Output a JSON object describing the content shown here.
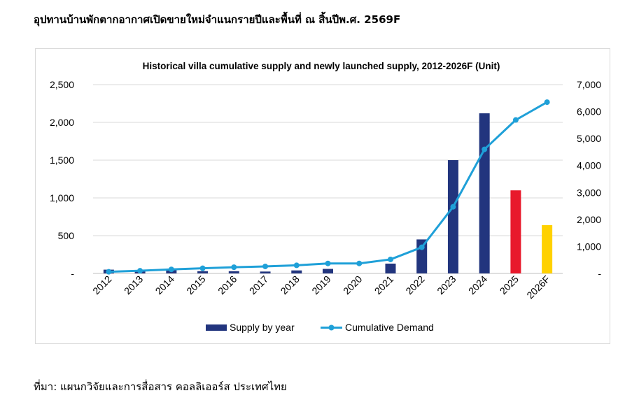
{
  "page": {
    "title": "อุปทานบ้านพักตากอากาศเปิดขายใหม่จำแนกรายปีและพื้นที่ ณ สิ้นปีพ.ศ. 2569F",
    "source": "ที่มา: แผนกวิจัยและการสื่อสาร คอลลิเออร์ส ประเทศไทย"
  },
  "colors": {
    "bar_default": "#22357e",
    "bar_2025": "#e8192c",
    "bar_2026F": "#ffd100",
    "line": "#1fa0d8"
  },
  "chart_data": {
    "type": "bar",
    "title": "Historical  villa cumulative supply and newly launched supply, 2012-2026F (Unit)",
    "categories": [
      "2012",
      "2013",
      "2014",
      "2015",
      "2016",
      "2017",
      "2018",
      "2019",
      "2020",
      "2021",
      "2022",
      "2023",
      "2024",
      "2025",
      "2026F"
    ],
    "series": [
      {
        "name": "Supply by year",
        "type": "bar",
        "axis": "left",
        "values": [
          50,
          30,
          50,
          30,
          30,
          25,
          40,
          60,
          0,
          130,
          450,
          1500,
          2120,
          1100,
          640
        ]
      },
      {
        "name": "Cumulative Demand",
        "type": "line",
        "axis": "right",
        "values": [
          60,
          100,
          150,
          190,
          230,
          260,
          300,
          370,
          370,
          520,
          970,
          2470,
          4600,
          5690,
          6350
        ]
      }
    ],
    "y_left": {
      "min": 0,
      "max": 2500,
      "ticks": [
        0,
        500,
        1000,
        1500,
        2000,
        2500
      ],
      "tick_labels": [
        "-",
        "500",
        "1,000",
        "1,500",
        "2,000",
        "2,500"
      ]
    },
    "y_right": {
      "min": 0,
      "max": 7000,
      "ticks": [
        0,
        1000,
        2000,
        3000,
        4000,
        5000,
        6000,
        7000
      ],
      "tick_labels": [
        "-",
        "1,000",
        "2,000",
        "3,000",
        "4,000",
        "5,000",
        "6,000",
        "7,000"
      ]
    },
    "grid": true,
    "legend_position": "bottom"
  }
}
